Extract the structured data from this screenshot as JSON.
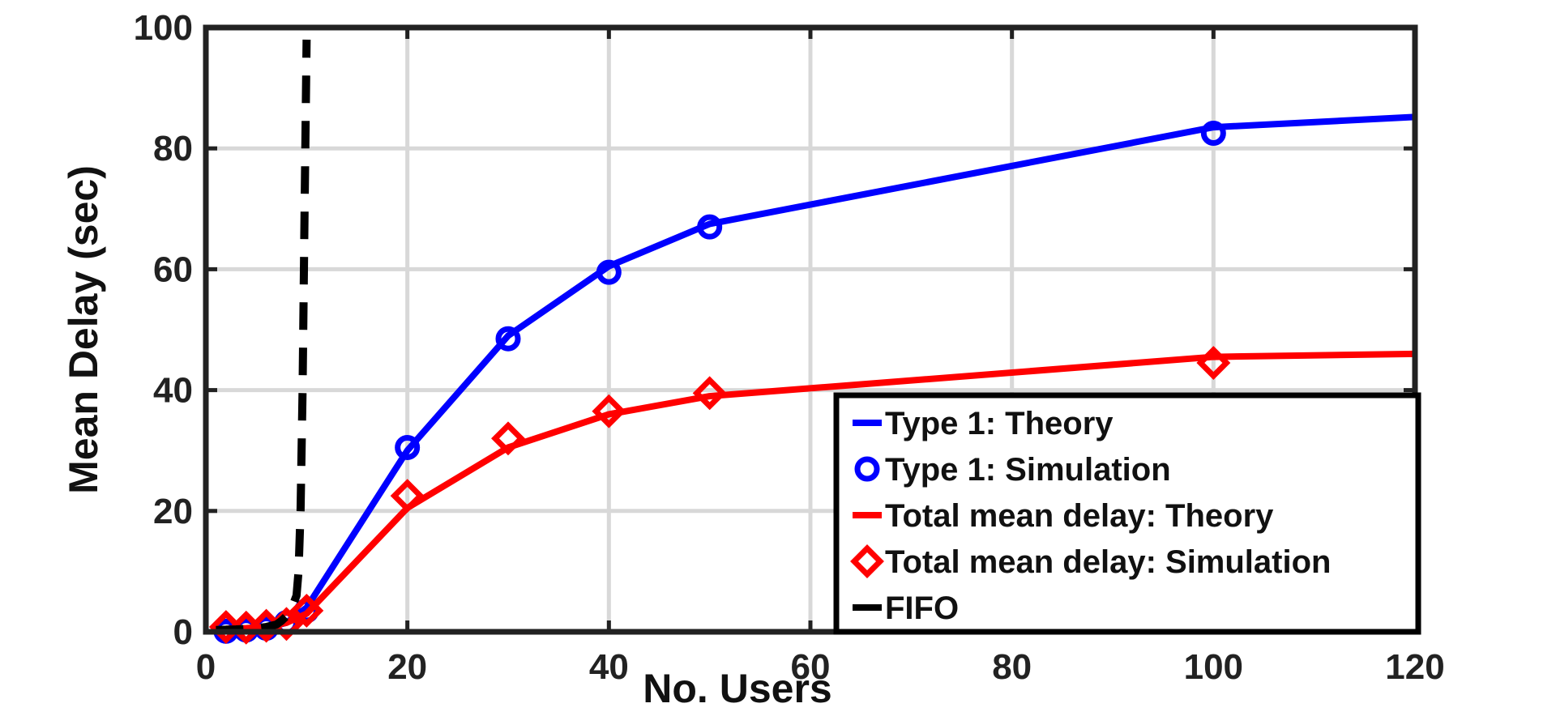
{
  "chart_data": {
    "type": "line",
    "title": "",
    "xlabel": "No. Users",
    "ylabel": "Mean Delay (sec)",
    "xlim": [
      0,
      120
    ],
    "ylim": [
      0,
      100
    ],
    "xticks": [
      0,
      20,
      40,
      60,
      80,
      100,
      120
    ],
    "yticks": [
      0,
      20,
      40,
      60,
      80,
      100
    ],
    "grid": true,
    "legend_position": "bottom-right",
    "series": [
      {
        "name": "Type 1:  Theory",
        "style": "solid",
        "color": "#0000ff",
        "x": [
          2,
          4,
          6,
          8,
          10,
          20,
          30,
          40,
          50,
          100,
          120
        ],
        "y": [
          0.1,
          0.3,
          0.6,
          1.5,
          4.0,
          30.0,
          49.0,
          60.5,
          67.5,
          83.5,
          85.2
        ]
      },
      {
        "name": "Type 1:  Simulation",
        "style": "marker",
        "marker": "circle",
        "color": "#0000ff",
        "x": [
          2,
          4,
          6,
          8,
          10,
          20,
          30,
          40,
          50,
          100
        ],
        "y": [
          0.1,
          0.3,
          0.6,
          1.5,
          3.5,
          30.5,
          48.5,
          59.5,
          67.0,
          82.5
        ]
      },
      {
        "name": "Total mean delay:  Theory",
        "style": "solid",
        "color": "#ff0000",
        "x": [
          2,
          4,
          6,
          8,
          10,
          20,
          30,
          40,
          50,
          100,
          120
        ],
        "y": [
          0.5,
          0.6,
          0.8,
          1.5,
          3.0,
          20.5,
          30.5,
          36.0,
          39.0,
          45.5,
          46.0
        ]
      },
      {
        "name": "Total mean delay:  Simulation",
        "style": "marker",
        "marker": "diamond",
        "color": "#ff0000",
        "x": [
          2,
          4,
          6,
          8,
          10,
          20,
          30,
          40,
          50,
          100
        ],
        "y": [
          0.8,
          0.7,
          1.0,
          1.3,
          3.5,
          22.5,
          32.0,
          36.5,
          39.5,
          44.5
        ]
      },
      {
        "name": "FIFO",
        "style": "dashed",
        "color": "#000000",
        "x": [
          1,
          3,
          5,
          6,
          7,
          7.5,
          8,
          8.5,
          9,
          9.2,
          9.4,
          9.6,
          9.8,
          10.0
        ],
        "y": [
          0.3,
          0.4,
          0.6,
          0.8,
          1.2,
          1.8,
          2.6,
          3.8,
          6.0,
          10.0,
          20.0,
          40.0,
          70.0,
          98.0
        ]
      }
    ]
  }
}
